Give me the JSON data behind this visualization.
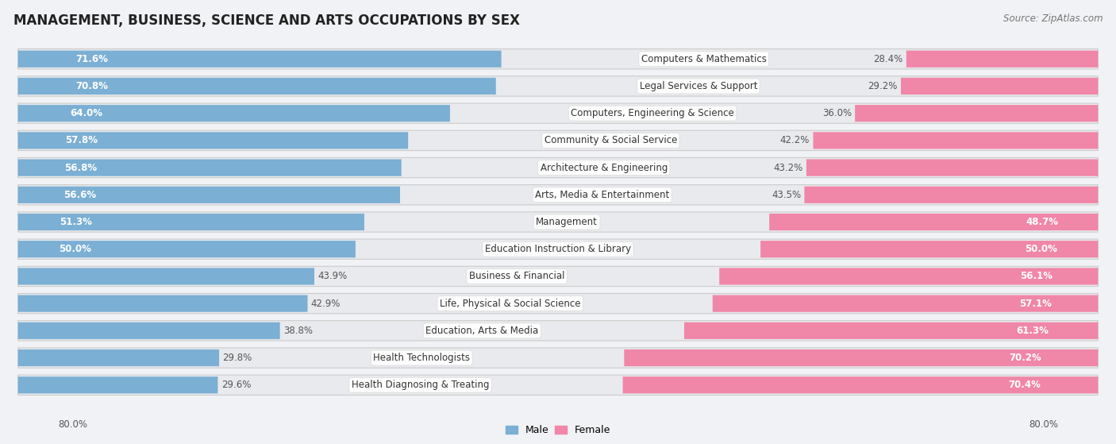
{
  "title": "MANAGEMENT, BUSINESS, SCIENCE AND ARTS OCCUPATIONS BY SEX",
  "source": "Source: ZipAtlas.com",
  "categories": [
    "Computers & Mathematics",
    "Legal Services & Support",
    "Computers, Engineering & Science",
    "Community & Social Service",
    "Architecture & Engineering",
    "Arts, Media & Entertainment",
    "Management",
    "Education Instruction & Library",
    "Business & Financial",
    "Life, Physical & Social Science",
    "Education, Arts & Media",
    "Health Technologists",
    "Health Diagnosing & Treating"
  ],
  "male_pct": [
    71.6,
    70.8,
    64.0,
    57.8,
    56.8,
    56.6,
    51.3,
    50.0,
    43.9,
    42.9,
    38.8,
    29.8,
    29.6
  ],
  "female_pct": [
    28.4,
    29.2,
    36.0,
    42.2,
    43.2,
    43.5,
    48.7,
    50.0,
    56.1,
    57.1,
    61.3,
    70.2,
    70.4
  ],
  "male_color": "#7bafd4",
  "female_color": "#f086a8",
  "bg_color": "#f0f2f5",
  "xlim": 80.0,
  "bar_height": 0.62,
  "title_fontsize": 12,
  "label_fontsize": 8.5,
  "pct_fontsize": 8.5,
  "source_fontsize": 8.5,
  "axis_label_left": "80.0%",
  "axis_label_right": "80.0%"
}
